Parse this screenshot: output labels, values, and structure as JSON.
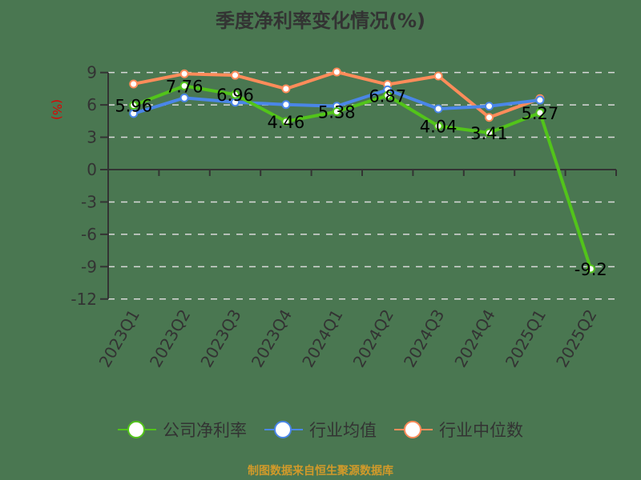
{
  "title": "季度净利率变化情况(%)",
  "footer": "制图数据来自恒生聚源数据库",
  "chart_data": {
    "type": "line",
    "title": "季度净利率变化情况(%)",
    "xlabel": "",
    "ylabel": "(%)",
    "categories": [
      "2023Q1",
      "2023Q2",
      "2023Q3",
      "2023Q4",
      "2024Q1",
      "2024Q2",
      "2024Q3",
      "2024Q4",
      "2025Q1",
      "2025Q2"
    ],
    "ylim": [
      -12,
      9
    ],
    "yticks": [
      9,
      6,
      3,
      0,
      -3,
      -6,
      -9,
      -12
    ],
    "grid": true,
    "legend_position": "bottom",
    "series": [
      {
        "name": "公司净利率",
        "color": "#52c41a",
        "values": [
          5.96,
          7.76,
          6.96,
          4.46,
          5.38,
          6.87,
          4.04,
          3.41,
          5.27,
          -9.2
        ],
        "show_labels": true
      },
      {
        "name": "行业均值",
        "color": "#4a86e8",
        "values": [
          5.2,
          6.65,
          6.25,
          6.03,
          5.88,
          7.4,
          5.64,
          5.88,
          6.45,
          null
        ],
        "show_labels": false
      },
      {
        "name": "行业中位数",
        "color": "#ff8c5a",
        "values": [
          7.94,
          8.88,
          8.75,
          7.49,
          9.05,
          7.89,
          8.68,
          4.84,
          6.58,
          null
        ],
        "show_labels": false
      }
    ]
  }
}
